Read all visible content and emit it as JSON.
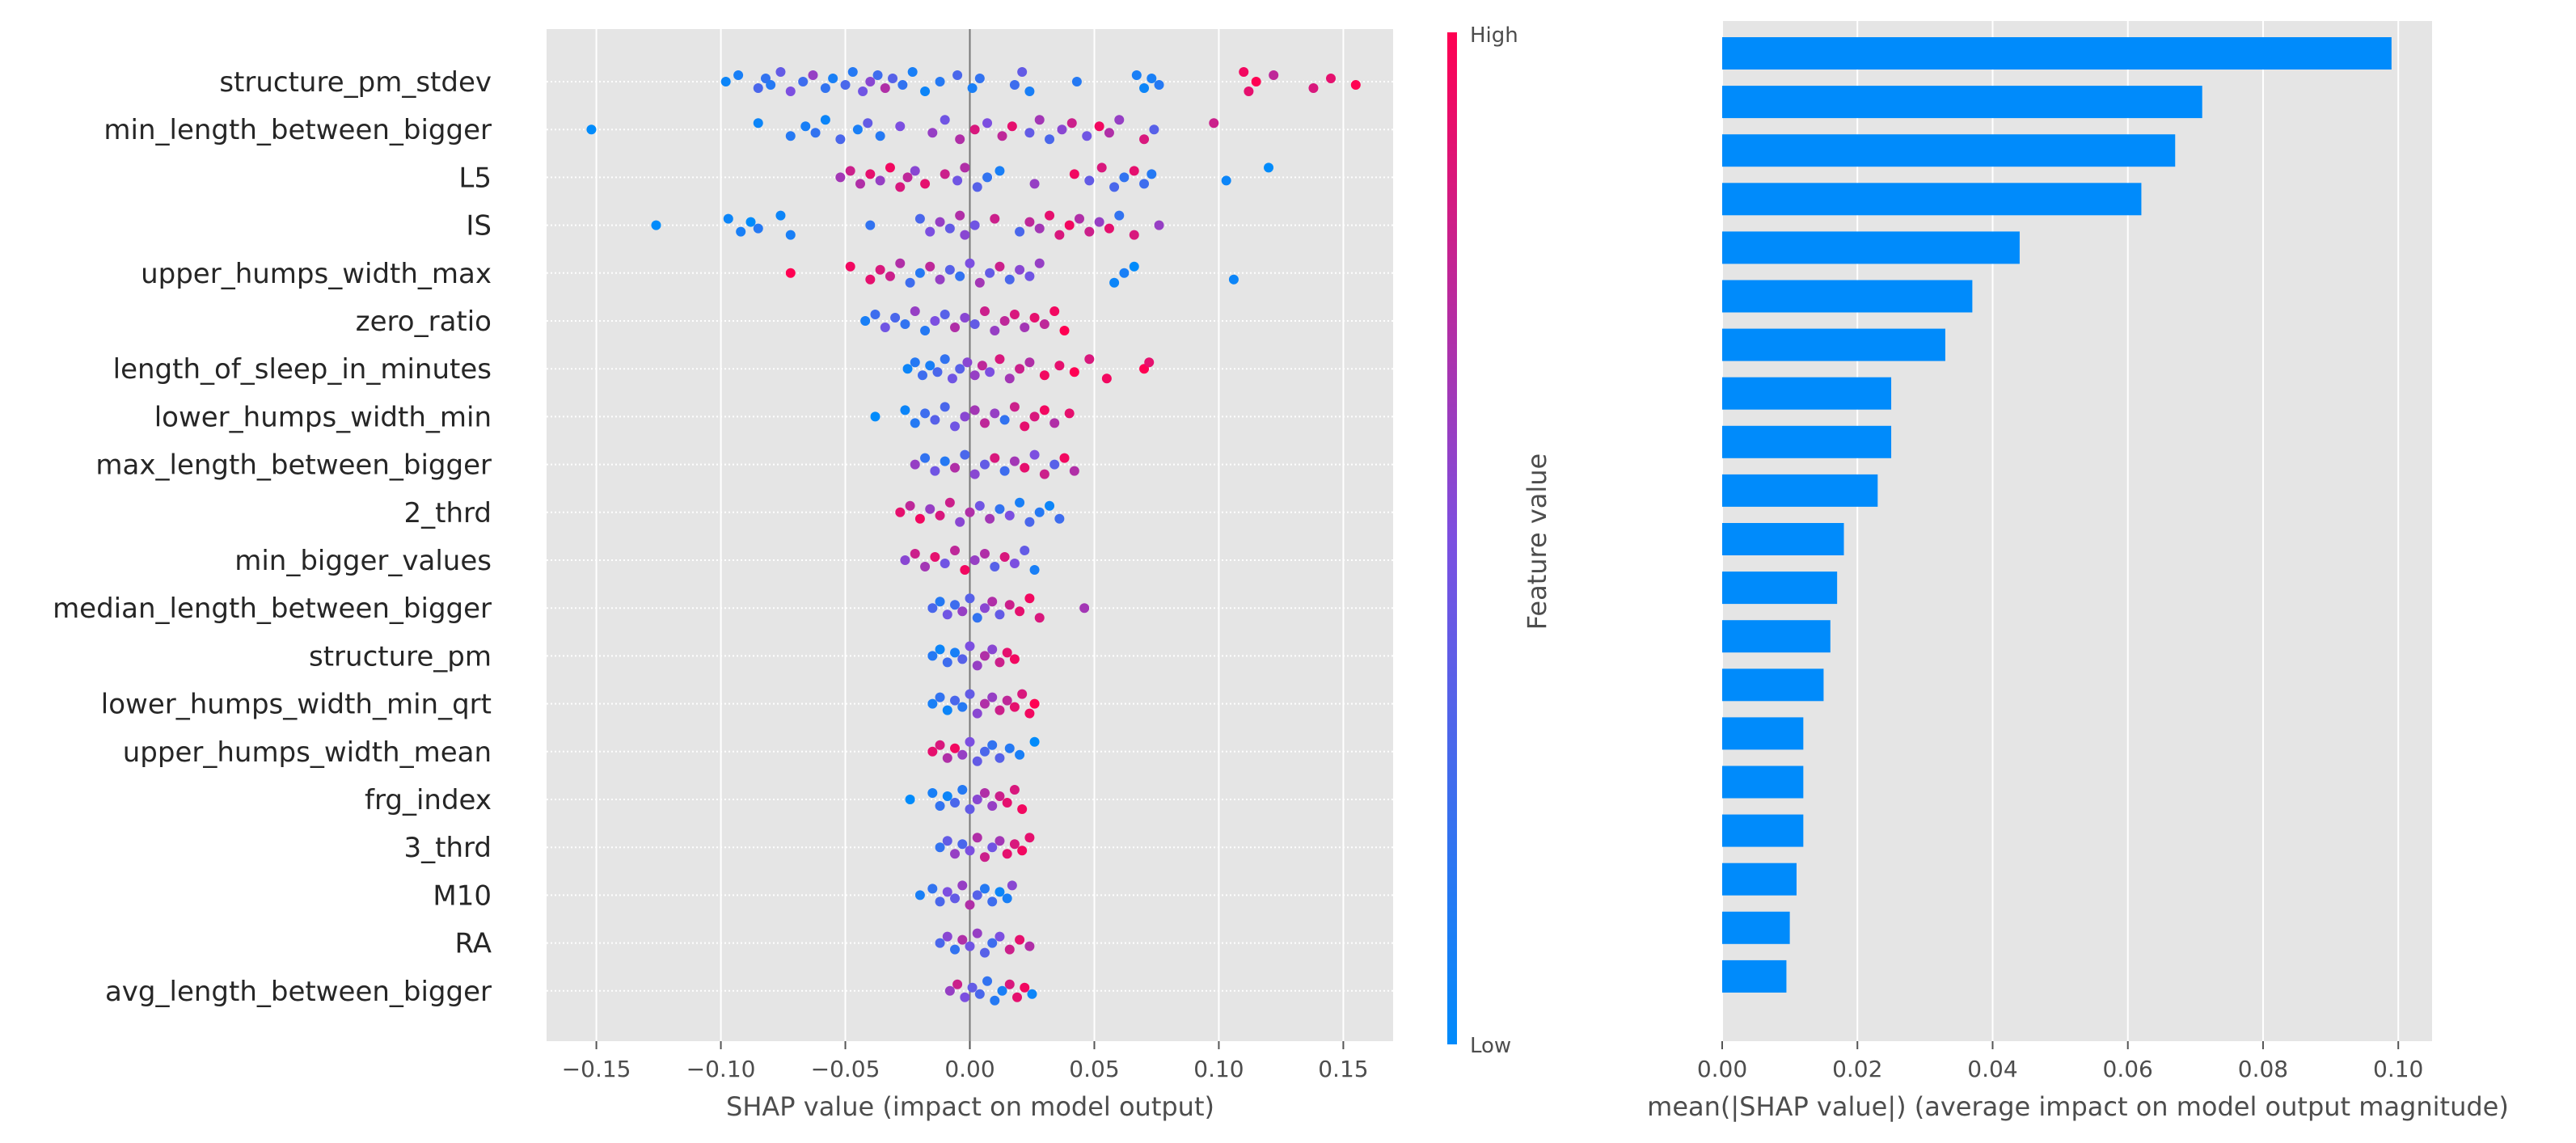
{
  "chart_data": [
    {
      "type": "scatter",
      "subtype": "shap-beeswarm",
      "title": "",
      "xlabel": "SHAP value (impact on model output)",
      "xlim": [
        -0.17,
        0.17
      ],
      "xticks": [
        -0.15,
        -0.1,
        -0.05,
        0.0,
        0.05,
        0.1,
        0.15
      ],
      "xtick_labels": [
        "−0.15",
        "−0.10",
        "−0.05",
        "0.00",
        "0.05",
        "0.10",
        "0.15"
      ],
      "grid": true,
      "colorbar": {
        "label": "Feature value",
        "high_label": "High",
        "low_label": "Low",
        "low_color": "#008bfb",
        "high_color": "#ff0052"
      },
      "features": [
        "structure_pm_stdev",
        "min_length_between_bigger",
        "L5",
        "IS",
        "upper_humps_width_max",
        "zero_ratio",
        "length_of_sleep_in_minutes",
        "lower_humps_width_min",
        "max_length_between_bigger",
        "2_thrd",
        "min_bigger_values",
        "median_length_between_bigger",
        "structure_pm",
        "lower_humps_width_min_qrt",
        "upper_humps_width_mean",
        "frg_index",
        "3_thrd",
        "M10",
        "RA",
        "avg_length_between_bigger"
      ],
      "series": [
        {
          "name": "structure_pm_stdev",
          "x": [
            -0.098,
            -0.093,
            -0.085,
            -0.082,
            -0.08,
            -0.076,
            -0.072,
            -0.067,
            -0.063,
            -0.058,
            -0.055,
            -0.05,
            -0.047,
            -0.043,
            -0.04,
            -0.037,
            -0.034,
            -0.031,
            -0.027,
            -0.023,
            -0.018,
            -0.012,
            -0.005,
            0.001,
            0.004,
            0.018,
            0.021,
            0.024,
            0.043,
            0.067,
            0.07,
            0.073,
            0.076,
            0.11,
            0.112,
            0.115,
            0.122,
            0.138,
            0.145,
            0.155
          ],
          "v": [
            0.05,
            0.1,
            0.3,
            0.2,
            0.15,
            0.4,
            0.5,
            0.25,
            0.6,
            0.2,
            0.1,
            0.3,
            0.15,
            0.45,
            0.55,
            0.25,
            0.7,
            0.35,
            0.2,
            0.1,
            0.05,
            0.15,
            0.3,
            0.1,
            0.2,
            0.25,
            0.4,
            0.1,
            0.15,
            0.1,
            0.05,
            0.1,
            0.15,
            0.95,
            0.9,
            1.0,
            0.75,
            0.85,
            0.9,
            1.0
          ]
        },
        {
          "name": "min_length_between_bigger",
          "x": [
            -0.152,
            -0.085,
            -0.072,
            -0.066,
            -0.062,
            -0.058,
            -0.052,
            -0.045,
            -0.041,
            -0.036,
            -0.028,
            -0.015,
            -0.01,
            -0.004,
            0.002,
            0.007,
            0.013,
            0.017,
            0.024,
            0.028,
            0.032,
            0.037,
            0.041,
            0.047,
            0.052,
            0.056,
            0.06,
            0.07,
            0.074,
            0.098
          ],
          "v": [
            0.0,
            0.05,
            0.15,
            0.1,
            0.2,
            0.05,
            0.3,
            0.1,
            0.4,
            0.15,
            0.5,
            0.6,
            0.45,
            0.7,
            0.85,
            0.5,
            0.75,
            0.9,
            0.4,
            0.65,
            0.3,
            0.55,
            0.8,
            0.45,
            0.95,
            0.7,
            0.6,
            0.85,
            0.35,
            0.8
          ]
        },
        {
          "name": "L5",
          "x": [
            -0.052,
            -0.048,
            -0.044,
            -0.04,
            -0.036,
            -0.032,
            -0.028,
            -0.025,
            -0.022,
            -0.018,
            -0.01,
            -0.005,
            -0.002,
            0.003,
            0.007,
            0.012,
            0.026,
            0.042,
            0.048,
            0.053,
            0.058,
            0.062,
            0.066,
            0.07,
            0.073,
            0.103,
            0.12
          ],
          "v": [
            0.65,
            0.8,
            0.7,
            0.9,
            0.6,
            0.95,
            0.85,
            0.75,
            0.55,
            0.9,
            0.8,
            0.45,
            0.7,
            0.35,
            0.2,
            0.1,
            0.6,
            0.95,
            0.4,
            0.85,
            0.3,
            0.2,
            0.9,
            0.25,
            0.15,
            0.05,
            0.0
          ]
        },
        {
          "name": "IS",
          "x": [
            -0.126,
            -0.097,
            -0.092,
            -0.088,
            -0.085,
            -0.076,
            -0.072,
            -0.04,
            -0.02,
            -0.016,
            -0.012,
            -0.008,
            -0.004,
            -0.002,
            0.002,
            0.01,
            0.02,
            0.024,
            0.028,
            0.032,
            0.036,
            0.04,
            0.044,
            0.048,
            0.052,
            0.056,
            0.06,
            0.066,
            0.076
          ],
          "v": [
            0.0,
            0.05,
            0.1,
            0.0,
            0.15,
            0.05,
            0.1,
            0.2,
            0.3,
            0.5,
            0.6,
            0.4,
            0.7,
            0.55,
            0.45,
            0.8,
            0.3,
            0.75,
            0.65,
            0.9,
            0.85,
            0.95,
            0.7,
            0.8,
            0.6,
            0.9,
            0.2,
            0.85,
            0.6
          ]
        },
        {
          "name": "upper_humps_width_max",
          "x": [
            -0.072,
            -0.048,
            -0.04,
            -0.036,
            -0.032,
            -0.028,
            -0.024,
            -0.02,
            -0.016,
            -0.012,
            -0.008,
            -0.004,
            0.0,
            0.004,
            0.008,
            0.012,
            0.016,
            0.02,
            0.024,
            0.028,
            0.058,
            0.062,
            0.066,
            0.106
          ],
          "v": [
            1.0,
            0.95,
            0.9,
            0.85,
            0.8,
            0.7,
            0.25,
            0.15,
            0.75,
            0.6,
            0.35,
            0.2,
            0.5,
            0.65,
            0.4,
            0.8,
            0.3,
            0.55,
            0.45,
            0.6,
            0.05,
            0.1,
            0.0,
            0.05
          ]
        },
        {
          "name": "zero_ratio",
          "x": [
            -0.042,
            -0.038,
            -0.034,
            -0.03,
            -0.026,
            -0.022,
            -0.018,
            -0.014,
            -0.01,
            -0.006,
            -0.002,
            0.002,
            0.006,
            0.01,
            0.014,
            0.018,
            0.022,
            0.026,
            0.03,
            0.034,
            0.038
          ],
          "v": [
            0.1,
            0.25,
            0.45,
            0.3,
            0.2,
            0.6,
            0.15,
            0.5,
            0.35,
            0.7,
            0.55,
            0.4,
            0.8,
            0.6,
            0.75,
            0.85,
            0.65,
            0.9,
            0.75,
            0.95,
            1.0
          ]
        },
        {
          "name": "length_of_sleep_in_minutes",
          "x": [
            -0.025,
            -0.022,
            -0.019,
            -0.016,
            -0.013,
            -0.01,
            -0.007,
            -0.004,
            -0.001,
            0.002,
            0.005,
            0.008,
            0.012,
            0.016,
            0.02,
            0.024,
            0.03,
            0.036,
            0.042,
            0.048,
            0.055,
            0.07,
            0.072
          ],
          "v": [
            0.05,
            0.15,
            0.25,
            0.1,
            0.3,
            0.2,
            0.45,
            0.35,
            0.55,
            0.6,
            0.75,
            0.5,
            0.85,
            0.65,
            0.8,
            0.7,
            0.95,
            0.9,
            1.0,
            0.85,
            0.95,
            1.0,
            0.9
          ]
        },
        {
          "name": "lower_humps_width_min",
          "x": [
            -0.038,
            -0.026,
            -0.022,
            -0.018,
            -0.014,
            -0.01,
            -0.006,
            -0.002,
            0.002,
            0.006,
            0.01,
            0.014,
            0.018,
            0.022,
            0.026,
            0.03,
            0.034,
            0.04
          ],
          "v": [
            0.0,
            0.05,
            0.15,
            0.25,
            0.35,
            0.3,
            0.45,
            0.55,
            0.65,
            0.75,
            0.6,
            0.2,
            0.8,
            0.9,
            0.85,
            0.95,
            0.7,
            0.9
          ]
        },
        {
          "name": "max_length_between_bigger",
          "x": [
            -0.022,
            -0.018,
            -0.014,
            -0.01,
            -0.006,
            -0.002,
            0.002,
            0.006,
            0.01,
            0.014,
            0.018,
            0.022,
            0.026,
            0.03,
            0.034,
            0.038,
            0.042
          ],
          "v": [
            0.6,
            0.2,
            0.45,
            0.15,
            0.7,
            0.3,
            0.55,
            0.4,
            0.85,
            0.25,
            0.65,
            0.9,
            0.5,
            0.8,
            0.35,
            0.95,
            0.7
          ]
        },
        {
          "name": "2_thrd",
          "x": [
            -0.028,
            -0.024,
            -0.02,
            -0.016,
            -0.012,
            -0.008,
            -0.004,
            0.0,
            0.004,
            0.008,
            0.012,
            0.016,
            0.02,
            0.024,
            0.028,
            0.032,
            0.036
          ],
          "v": [
            0.9,
            0.75,
            0.95,
            0.6,
            0.85,
            0.8,
            0.55,
            0.7,
            0.45,
            0.65,
            0.2,
            0.5,
            0.1,
            0.3,
            0.15,
            0.05,
            0.25
          ]
        },
        {
          "name": "min_bigger_values",
          "x": [
            -0.026,
            -0.022,
            -0.018,
            -0.014,
            -0.01,
            -0.006,
            -0.002,
            0.002,
            0.006,
            0.01,
            0.014,
            0.018,
            0.022,
            0.026
          ],
          "v": [
            0.55,
            0.8,
            0.65,
            0.9,
            0.45,
            0.75,
            0.95,
            0.6,
            0.7,
            0.35,
            0.85,
            0.5,
            0.4,
            0.1
          ]
        },
        {
          "name": "median_length_between_bigger",
          "x": [
            -0.015,
            -0.012,
            -0.009,
            -0.006,
            -0.003,
            0.0,
            0.003,
            0.006,
            0.009,
            0.012,
            0.016,
            0.02,
            0.024,
            0.028,
            0.046
          ],
          "v": [
            0.3,
            0.15,
            0.45,
            0.25,
            0.6,
            0.35,
            0.2,
            0.55,
            0.7,
            0.4,
            0.8,
            0.9,
            0.95,
            0.85,
            0.65
          ]
        },
        {
          "name": "structure_pm",
          "x": [
            -0.015,
            -0.012,
            -0.009,
            -0.006,
            -0.003,
            0.0,
            0.003,
            0.006,
            0.009,
            0.012,
            0.015,
            0.018
          ],
          "v": [
            0.15,
            0.05,
            0.25,
            0.1,
            0.35,
            0.5,
            0.6,
            0.7,
            0.55,
            0.8,
            0.9,
            0.95
          ]
        },
        {
          "name": "lower_humps_width_min_qrt",
          "x": [
            -0.015,
            -0.012,
            -0.009,
            -0.006,
            -0.003,
            0.0,
            0.003,
            0.006,
            0.009,
            0.012,
            0.015,
            0.018,
            0.021,
            0.024,
            0.026
          ],
          "v": [
            0.1,
            0.2,
            0.05,
            0.3,
            0.15,
            0.4,
            0.55,
            0.7,
            0.6,
            0.8,
            0.75,
            0.9,
            0.85,
            0.95,
            1.0
          ]
        },
        {
          "name": "upper_humps_width_mean",
          "x": [
            -0.015,
            -0.012,
            -0.009,
            -0.006,
            -0.003,
            0.0,
            0.003,
            0.006,
            0.009,
            0.012,
            0.016,
            0.02,
            0.026
          ],
          "v": [
            0.9,
            0.85,
            0.7,
            0.95,
            0.6,
            0.5,
            0.4,
            0.3,
            0.2,
            0.35,
            0.15,
            0.1,
            0.0
          ]
        },
        {
          "name": "frg_index",
          "x": [
            -0.024,
            -0.015,
            -0.012,
            -0.009,
            -0.006,
            -0.003,
            0.0,
            0.003,
            0.006,
            0.009,
            0.012,
            0.015,
            0.018,
            0.021
          ],
          "v": [
            0.0,
            0.1,
            0.2,
            0.05,
            0.3,
            0.15,
            0.4,
            0.55,
            0.7,
            0.6,
            0.8,
            0.9,
            0.85,
            0.95
          ]
        },
        {
          "name": "3_thrd",
          "x": [
            -0.012,
            -0.009,
            -0.006,
            -0.003,
            0.0,
            0.003,
            0.006,
            0.009,
            0.012,
            0.015,
            0.018,
            0.021,
            0.024
          ],
          "v": [
            0.2,
            0.4,
            0.6,
            0.3,
            0.5,
            0.7,
            0.8,
            0.45,
            0.65,
            0.9,
            0.85,
            0.95,
            0.9
          ]
        },
        {
          "name": "M10",
          "x": [
            -0.02,
            -0.015,
            -0.012,
            -0.009,
            -0.006,
            -0.003,
            0.0,
            0.003,
            0.006,
            0.009,
            0.012,
            0.015,
            0.017
          ],
          "v": [
            0.1,
            0.2,
            0.3,
            0.5,
            0.4,
            0.6,
            0.7,
            0.35,
            0.15,
            0.25,
            0.05,
            0.1,
            0.55
          ]
        },
        {
          "name": "RA",
          "x": [
            -0.012,
            -0.009,
            -0.006,
            -0.003,
            0.0,
            0.003,
            0.006,
            0.009,
            0.012,
            0.016,
            0.02,
            0.024
          ],
          "v": [
            0.3,
            0.55,
            0.2,
            0.7,
            0.45,
            0.6,
            0.35,
            0.25,
            0.5,
            0.8,
            0.9,
            0.7
          ]
        },
        {
          "name": "avg_length_between_bigger",
          "x": [
            -0.008,
            -0.005,
            -0.002,
            0.001,
            0.004,
            0.007,
            0.01,
            0.013,
            0.016,
            0.019,
            0.022,
            0.025
          ],
          "v": [
            0.6,
            0.8,
            0.5,
            0.4,
            0.3,
            0.2,
            0.15,
            0.1,
            0.85,
            0.9,
            0.95,
            0.05
          ]
        }
      ]
    },
    {
      "type": "bar",
      "orientation": "horizontal",
      "title": "",
      "xlabel": "mean(|SHAP value|) (average impact on model output magnitude)",
      "xlim": [
        0,
        0.105
      ],
      "xticks": [
        0.0,
        0.02,
        0.04,
        0.06,
        0.08,
        0.1
      ],
      "xtick_labels": [
        "0.00",
        "0.02",
        "0.04",
        "0.06",
        "0.08",
        "0.10"
      ],
      "grid": true,
      "bar_color": "#008bfb",
      "categories": [
        "structure_pm_stdev",
        "min_length_between_bigger",
        "L5",
        "IS",
        "upper_humps_width_max",
        "zero_ratio",
        "length_of_sleep_in_minutes",
        "lower_humps_width_min",
        "max_length_between_bigger",
        "2_thrd",
        "min_bigger_values",
        "median_length_between_bigger",
        "structure_pm",
        "lower_humps_width_min_qrt",
        "upper_humps_width_mean",
        "frg_index",
        "3_thrd",
        "M10",
        "RA",
        "avg_length_between_bigger"
      ],
      "values": [
        0.099,
        0.071,
        0.067,
        0.062,
        0.044,
        0.037,
        0.033,
        0.025,
        0.025,
        0.023,
        0.018,
        0.017,
        0.016,
        0.015,
        0.012,
        0.012,
        0.012,
        0.011,
        0.01,
        0.0095
      ]
    }
  ]
}
